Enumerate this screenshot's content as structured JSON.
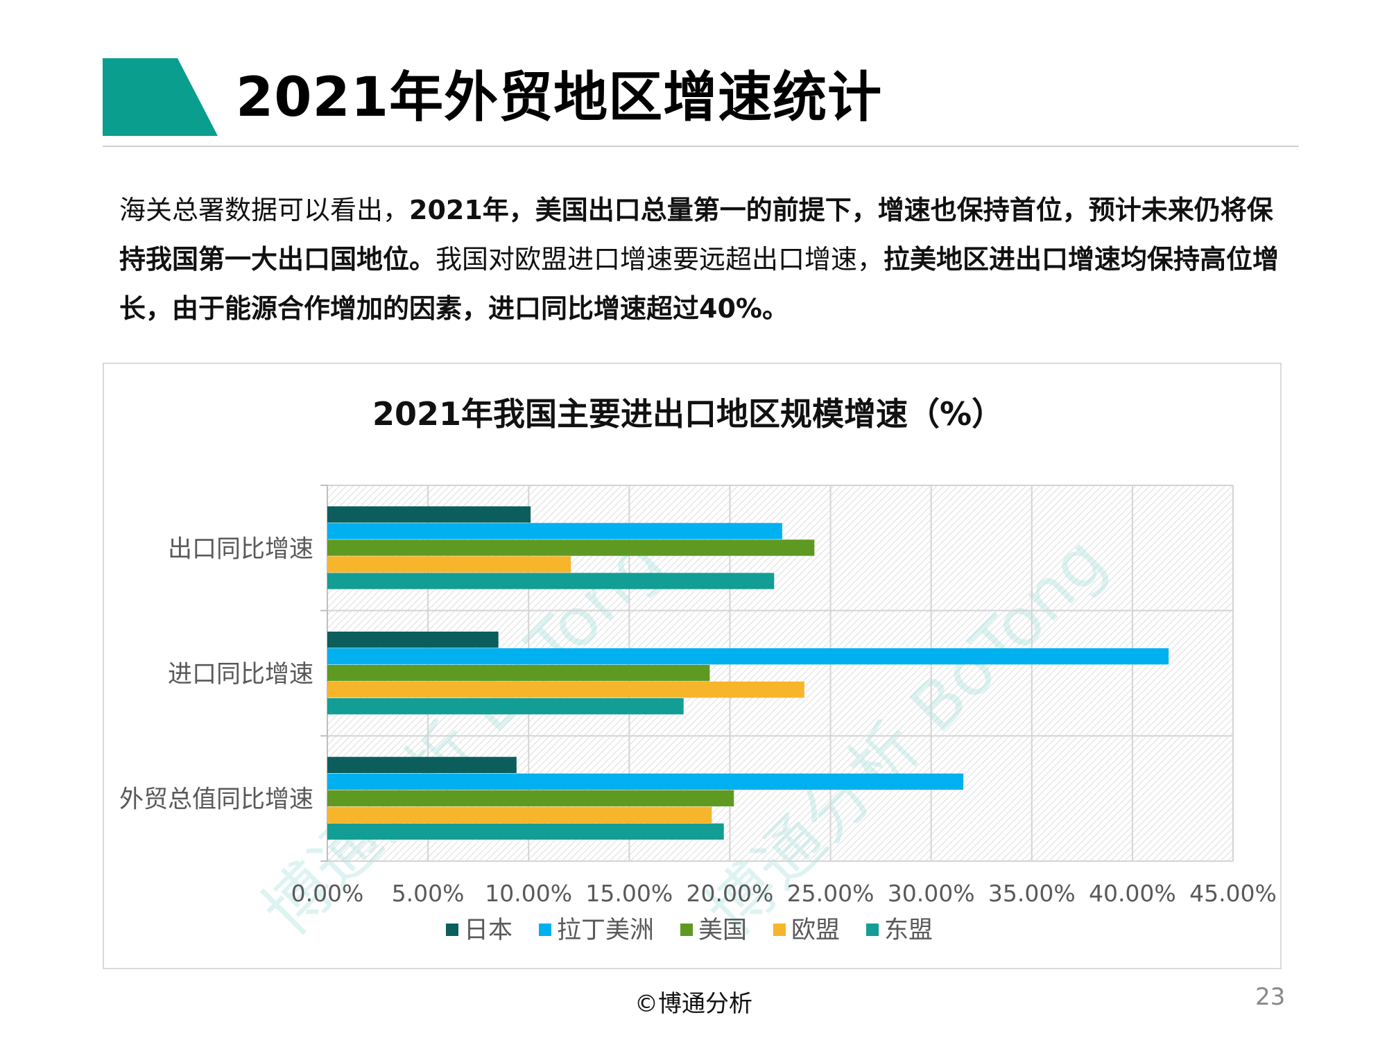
{
  "header": {
    "title": "2021年外贸地区增速统计",
    "accent_color": "#0a9e8f"
  },
  "intro": {
    "segments": [
      {
        "text": "海关总署数据可以看出，",
        "bold": false
      },
      {
        "text": "2021年，美国出口总量第一的前提下，增速也保持首位，预计未来仍将保持我国第一大出口国地位。",
        "bold": true
      },
      {
        "text": "我国对欧盟进口增速要远超出口增速，",
        "bold": false
      },
      {
        "text": "拉美地区进出口增速均保持高位增长，由于能源合作增加的因素，进口同比增速超过40%。",
        "bold": true
      }
    ]
  },
  "chart_data": {
    "type": "bar",
    "orientation": "horizontal",
    "title": "2021年我国主要进出口地区规模增速（%）",
    "categories": [
      "出口同比增速",
      "进口同比增速",
      "外贸总值同比增速"
    ],
    "series": [
      {
        "name": "日本",
        "color": "#0b5e5c",
        "values": [
          10.1,
          8.5,
          9.4
        ]
      },
      {
        "name": "拉丁美洲",
        "color": "#00b0ef",
        "values": [
          22.6,
          41.8,
          31.6
        ]
      },
      {
        "name": "美国",
        "color": "#5e9a22",
        "values": [
          24.2,
          19.0,
          20.2
        ]
      },
      {
        "name": "欧盟",
        "color": "#f7b52c",
        "values": [
          12.1,
          23.7,
          19.1
        ]
      },
      {
        "name": "东盟",
        "color": "#129e94",
        "values": [
          22.2,
          17.7,
          19.7
        ]
      }
    ],
    "xlim": [
      0,
      45
    ],
    "x_ticks": [
      "0.00%",
      "5.00%",
      "10.00%",
      "15.00%",
      "20.00%",
      "25.00%",
      "30.00%",
      "35.00%",
      "40.00%",
      "45.00%"
    ],
    "grid": true,
    "legend": "bottom",
    "watermark": "博通分析 BoTong"
  },
  "footer": {
    "copyright": "©博通分析",
    "page_number": "23"
  }
}
